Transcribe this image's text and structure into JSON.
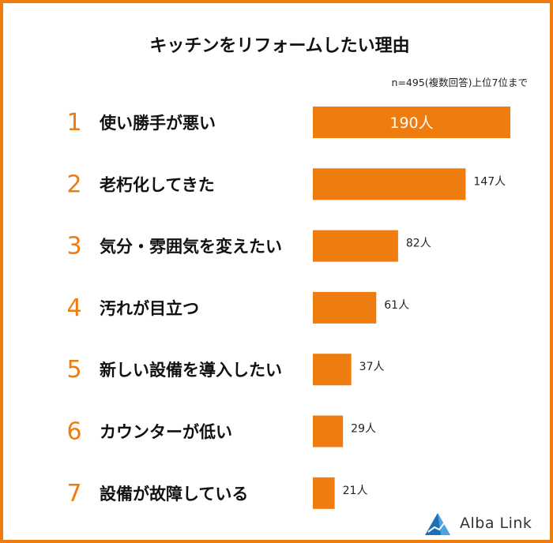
{
  "chart_data": {
    "type": "bar",
    "orientation": "horizontal",
    "title": "キッチンをリフォームしたい理由",
    "subtitle": "n=495(複数回答)上位7位まで",
    "ranks": [
      "1",
      "2",
      "3",
      "4",
      "5",
      "6",
      "7"
    ],
    "categories": [
      "使い勝手が悪い",
      "老朽化してきた",
      "気分・雰囲気を変えたい",
      "汚れが目立つ",
      "新しい設備を導入したい",
      "カウンターが低い",
      "設備が故障している"
    ],
    "values": [
      190,
      147,
      82,
      61,
      37,
      29,
      21
    ],
    "value_labels": [
      "190人",
      "147人",
      "82人",
      "61人",
      "37人",
      "29人",
      "21人"
    ],
    "bar_color": "#ee7c0f",
    "rank_color": "#ee7c0f",
    "grid": false
  },
  "brand": {
    "name": "Alba Link",
    "logo_icon": "triangle-logo-icon",
    "color": "#1f6fb5"
  },
  "frame_color": "#ee7c0f"
}
